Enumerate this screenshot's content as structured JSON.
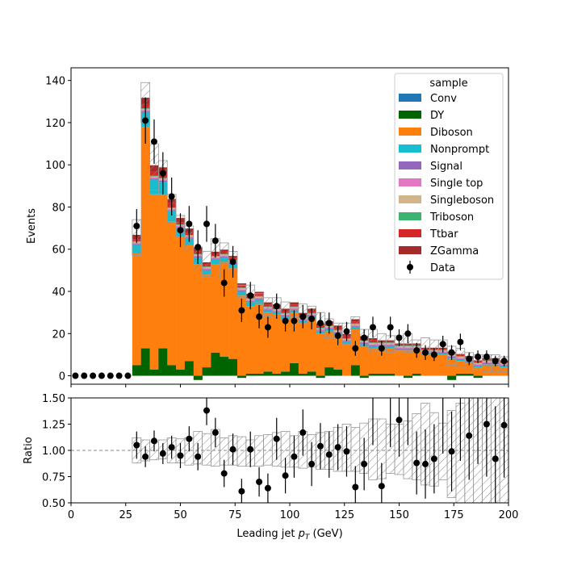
{
  "chart_data": [
    {
      "type": "stacked-histogram",
      "panel": "main",
      "xlim": [
        0,
        200
      ],
      "ylim": [
        -4,
        146
      ],
      "ylabel": "Events",
      "yticks": [
        0,
        20,
        40,
        60,
        80,
        100,
        120,
        140
      ],
      "bin_width": 4,
      "bin_edges_first": 28,
      "legend": {
        "title": "sample",
        "placement": "top-right"
      },
      "series": [
        {
          "name": "Conv",
          "color": "#1f77b4",
          "values": [
            0,
            0,
            0,
            0,
            0,
            0,
            0,
            0,
            0,
            0,
            0,
            0,
            0,
            0,
            0,
            0,
            0,
            0,
            0,
            0,
            0,
            0,
            0,
            0,
            0,
            0,
            0,
            0,
            0,
            0,
            0,
            0,
            0,
            0,
            0,
            0,
            0,
            0,
            0,
            0,
            0,
            0,
            0
          ]
        },
        {
          "name": "DY",
          "color": "#006400",
          "values": [
            5,
            13,
            3,
            13,
            5,
            3,
            7,
            -2,
            4,
            11,
            9,
            8,
            -1,
            1,
            1,
            2,
            1,
            2,
            6,
            1,
            2,
            -1,
            4,
            3,
            0,
            5,
            -1,
            1,
            1,
            1,
            0,
            -1,
            1,
            0,
            0,
            0,
            -2,
            1,
            1,
            -1,
            0,
            0,
            0
          ]
        },
        {
          "name": "Diboson",
          "color": "#ff7f0e",
          "values": [
            53,
            105,
            83,
            73,
            68,
            63,
            55,
            53,
            44,
            42,
            45,
            43,
            38,
            32,
            33,
            28,
            28,
            25,
            24,
            24,
            25,
            20,
            17,
            16,
            15,
            17,
            14,
            12,
            12,
            12,
            12,
            12,
            11,
            10,
            10,
            10,
            8,
            6,
            5,
            4,
            5,
            5,
            4
          ]
        },
        {
          "name": "Nonprompt",
          "color": "#17becf",
          "values": [
            4,
            7,
            7,
            6,
            5,
            4,
            3,
            3,
            2,
            2,
            2,
            2,
            2,
            2,
            2,
            1,
            1,
            1,
            1,
            1,
            1,
            1,
            1,
            1,
            1,
            1,
            1,
            1,
            1,
            1,
            0.5,
            0.5,
            0.5,
            0.5,
            0.5,
            0.5,
            0.5,
            0.5,
            0.5,
            0.5,
            0.5,
            0.5,
            0.5
          ]
        },
        {
          "name": "Signal",
          "color": "#9467bd",
          "values": [
            0.5,
            0.5,
            0.5,
            0.5,
            0.5,
            0.5,
            0.5,
            0.5,
            0.5,
            0.5,
            0.5,
            0.5,
            0.5,
            0.5,
            0.5,
            0.5,
            0.5,
            0.5,
            0.5,
            0.5,
            0.5,
            0.5,
            0.5,
            0.5,
            0.5,
            0.5,
            0.5,
            0.5,
            0.5,
            0.5,
            0.5,
            0.5,
            0.5,
            0.5,
            0.5,
            0.5,
            0.5,
            0.5,
            0.5,
            0.5,
            0.5,
            0.5,
            0.5
          ]
        },
        {
          "name": "Single top",
          "color": "#e377c2",
          "values": [
            0.5,
            0.5,
            0.5,
            0.5,
            0.5,
            0.5,
            0.5,
            0.5,
            0.5,
            0.5,
            0.5,
            0.5,
            0.5,
            0.5,
            0.5,
            0.5,
            0.5,
            0.5,
            0.5,
            0.5,
            0.5,
            0.5,
            0.5,
            0.5,
            0.5,
            0.5,
            0.5,
            0.5,
            0.5,
            0.5,
            0.5,
            0.5,
            0.5,
            0.5,
            0.5,
            0.5,
            0.5,
            0.5,
            0.5,
            0.5,
            0.5,
            0.5,
            0.5
          ]
        },
        {
          "name": "Singleboson",
          "color": "#d2b48c",
          "values": [
            0.5,
            0.5,
            0.5,
            0.5,
            0.5,
            0.5,
            0.5,
            0.5,
            0.5,
            0.5,
            0.5,
            0.5,
            0.5,
            0.5,
            0.5,
            0.5,
            0.5,
            0.5,
            0.5,
            0.5,
            0.5,
            0.5,
            0.5,
            0.5,
            0.5,
            0.5,
            0.5,
            0.5,
            0.5,
            0.5,
            0.5,
            0.5,
            0.5,
            0.5,
            0.5,
            0.5,
            0.5,
            0.5,
            0.5,
            0.5,
            0.5,
            0.5,
            0.5
          ]
        },
        {
          "name": "Triboson",
          "color": "#3cb371",
          "values": [
            0.3,
            0.3,
            0.3,
            0.3,
            0.3,
            0.3,
            0.3,
            0.3,
            0.3,
            0.3,
            0.3,
            0.3,
            0.3,
            0.3,
            0.3,
            0.3,
            0.3,
            0.3,
            0.3,
            0.3,
            0.3,
            0.3,
            0.3,
            0.3,
            0.3,
            0.3,
            0.3,
            0.3,
            0.3,
            0.3,
            0.3,
            0.3,
            0.3,
            0.3,
            0.3,
            0.3,
            0.3,
            0.3,
            0.3,
            0.3,
            0.3,
            0.3,
            0.3
          ]
        },
        {
          "name": "Ttbar",
          "color": "#d62728",
          "values": [
            1,
            2,
            2,
            2,
            2,
            1,
            1,
            1,
            1,
            1,
            1,
            1,
            1,
            1,
            1,
            1,
            1,
            1,
            1,
            1,
            1,
            1,
            1,
            1,
            1,
            1,
            1,
            1,
            0.5,
            0.5,
            0.5,
            0.5,
            0.5,
            0.5,
            0.5,
            0.5,
            0.5,
            0.5,
            0.5,
            0.5,
            0.5,
            0.5,
            0.5
          ]
        },
        {
          "name": "ZGamma",
          "color": "#a52a2a",
          "values": [
            2,
            3,
            3,
            3,
            2,
            2,
            2,
            2,
            1,
            1,
            1,
            1,
            1,
            1,
            1,
            1,
            1,
            1,
            1,
            1,
            1,
            1,
            1,
            1,
            1,
            1,
            1,
            1,
            0.5,
            0.5,
            0.5,
            0.5,
            0.5,
            0.5,
            0.5,
            0.5,
            0.5,
            0.5,
            0.5,
            0.5,
            0.5,
            0.5,
            0.5
          ]
        }
      ],
      "uncertainty": {
        "pattern": "hatched",
        "up": [
          74,
          139,
          110,
          102,
          86,
          76,
          71,
          61,
          59,
          65,
          63,
          59,
          43,
          43,
          39,
          37,
          37,
          35,
          31,
          34,
          33,
          30,
          27,
          25,
          25,
          28,
          22,
          22,
          20,
          19,
          19,
          20,
          17,
          18,
          17,
          17,
          14,
          13,
          11,
          10,
          10,
          10,
          9
        ],
        "down": [
          57,
          120,
          88,
          85,
          72,
          66,
          59,
          49,
          47,
          46,
          53,
          49,
          37,
          35,
          35,
          28,
          30,
          26,
          28,
          25,
          27,
          21,
          18,
          18,
          15,
          20,
          14,
          12,
          12,
          11,
          13,
          11,
          12,
          10,
          11,
          10,
          5,
          4,
          3,
          3,
          2,
          2,
          2
        ]
      },
      "data": {
        "name": "Data",
        "x": [
          2,
          6,
          10,
          14,
          18,
          22,
          26,
          30,
          34,
          38,
          42,
          46,
          50,
          54,
          58,
          62,
          66,
          70,
          74,
          78,
          82,
          86,
          90,
          94,
          98,
          102,
          106,
          110,
          114,
          118,
          122,
          126,
          130,
          134,
          138,
          142,
          146,
          150,
          154,
          158,
          162,
          166,
          170,
          174,
          178,
          182,
          186,
          190,
          194,
          198
        ],
        "y": [
          0,
          0,
          0,
          0,
          0,
          0,
          0,
          71,
          121,
          111,
          96,
          85,
          69,
          72,
          61,
          72,
          64,
          44,
          54,
          31,
          38,
          28,
          23,
          33,
          26,
          26,
          28,
          27,
          25,
          25,
          19,
          21,
          13,
          18,
          23,
          13,
          23,
          18,
          20,
          12,
          11,
          10,
          15,
          11,
          16,
          8,
          9,
          9,
          7,
          7
        ],
        "yerr": [
          0,
          0,
          0,
          0,
          0,
          0,
          0,
          8,
          11,
          10.5,
          10,
          9,
          8,
          8.5,
          8,
          8.5,
          8,
          6.5,
          7.5,
          5.5,
          6.5,
          5.5,
          5,
          6,
          5,
          5,
          5.5,
          5,
          5,
          5,
          4.5,
          4.5,
          3.5,
          4,
          5,
          3.5,
          5,
          4,
          4.5,
          3.5,
          3.5,
          3,
          4,
          3.5,
          4,
          3,
          3,
          3,
          2.5,
          2.5
        ]
      }
    },
    {
      "type": "scatter",
      "panel": "ratio",
      "xlim": [
        0,
        200
      ],
      "ylim": [
        0.5,
        1.5
      ],
      "ylabel": "Ratio",
      "xlabel_main": "Leading jet ",
      "xlabel_sym": "p",
      "xlabel_sub": "T",
      "xlabel_unit": " (GeV)",
      "xticks": [
        0,
        25,
        50,
        75,
        100,
        125,
        150,
        175,
        200
      ],
      "yticks": [
        "0.50",
        "0.75",
        "1.00",
        "1.25",
        "1.50"
      ],
      "reference_line": 1.0,
      "uncertainty": {
        "pattern": "hatched",
        "up": [
          1.12,
          1.1,
          1.08,
          1.1,
          1.12,
          1.11,
          1.12,
          1.18,
          1.16,
          1.2,
          1.12,
          1.14,
          1.13,
          1.1,
          1.14,
          1.15,
          1.17,
          1.18,
          1.14,
          1.18,
          1.15,
          1.17,
          1.18,
          1.22,
          1.25,
          1.22,
          1.26,
          1.3,
          1.3,
          1.25,
          1.25,
          1.28,
          1.35,
          1.45,
          1.36,
          1.26,
          1.38,
          1.45,
          1.55,
          1.62,
          1.62,
          1.6,
          1.6
        ],
        "down": [
          0.88,
          0.9,
          0.91,
          0.92,
          0.88,
          0.88,
          0.86,
          0.87,
          0.86,
          0.85,
          0.86,
          0.86,
          0.85,
          0.85,
          0.85,
          0.86,
          0.85,
          0.84,
          0.84,
          0.83,
          0.84,
          0.82,
          0.82,
          0.8,
          0.8,
          0.8,
          0.78,
          0.72,
          0.73,
          0.78,
          0.77,
          0.73,
          0.72,
          0.67,
          0.66,
          0.72,
          0.55,
          0.5,
          0.45,
          0.4,
          0.35,
          0.3,
          0.3
        ]
      },
      "data": {
        "x": [
          30,
          34,
          38,
          42,
          46,
          50,
          54,
          58,
          62,
          66,
          70,
          74,
          78,
          82,
          86,
          90,
          94,
          98,
          102,
          106,
          110,
          114,
          118,
          122,
          126,
          130,
          134,
          138,
          142,
          146,
          150,
          154,
          158,
          162,
          166,
          170,
          174,
          178,
          182,
          186,
          190,
          194,
          198
        ],
        "y": [
          1.05,
          0.94,
          1.09,
          0.97,
          1.03,
          0.95,
          1.11,
          0.94,
          1.38,
          1.17,
          0.78,
          1.01,
          0.61,
          1.01,
          0.7,
          0.64,
          1.11,
          0.76,
          0.94,
          1.17,
          0.87,
          1.04,
          0.96,
          1.03,
          0.99,
          0.65,
          0.87,
          null,
          0.66,
          null,
          1.29,
          null,
          0.88,
          0.87,
          0.92,
          null,
          0.99,
          null,
          1.14,
          null,
          1.25,
          0.92,
          1.24
        ],
        "yerr": [
          0.13,
          0.1,
          0.1,
          0.1,
          0.11,
          0.12,
          0.12,
          0.13,
          0.14,
          0.14,
          0.13,
          0.15,
          0.12,
          0.17,
          0.14,
          0.14,
          0.2,
          0.17,
          0.2,
          0.22,
          0.21,
          0.22,
          0.22,
          0.22,
          0.24,
          0.2,
          0.25,
          0.3,
          0.22,
          0.32,
          0.35,
          0.3,
          0.3,
          0.33,
          0.33,
          0.38,
          0.38,
          0.45,
          0.42,
          0.48,
          0.5,
          0.5,
          0.5
        ]
      }
    }
  ]
}
